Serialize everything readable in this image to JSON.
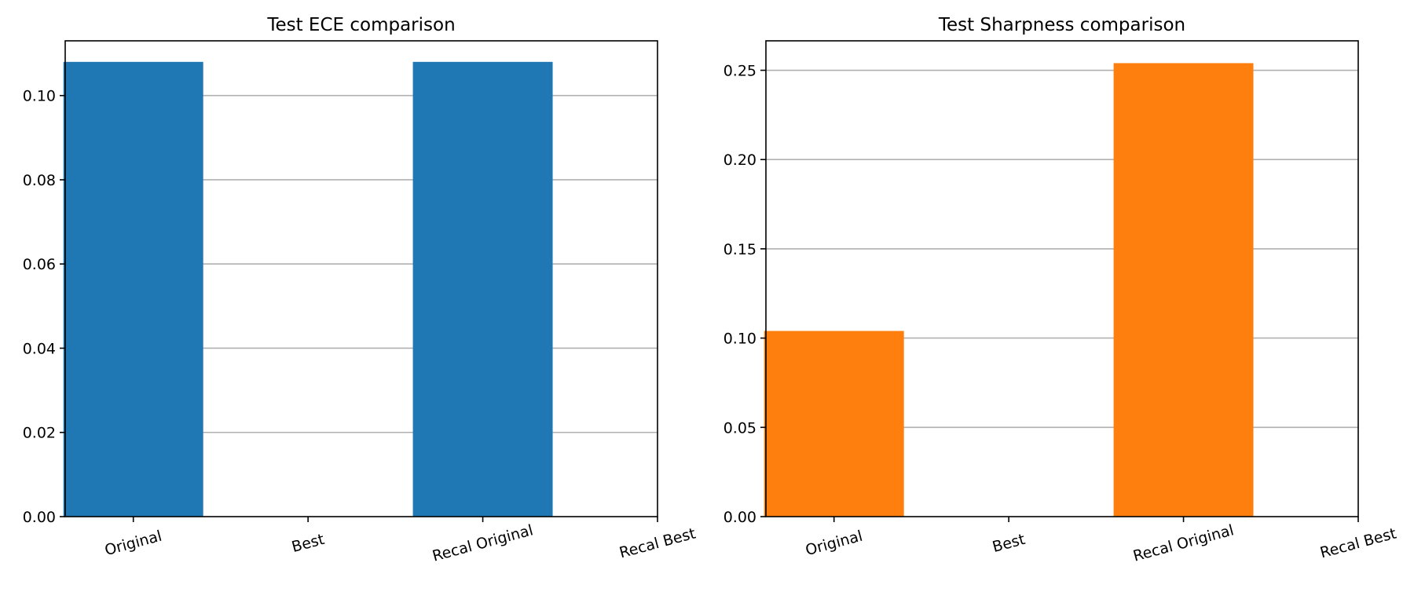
{
  "chart_data": [
    {
      "type": "bar",
      "title": "Test ECE comparison",
      "xlabel": "",
      "ylabel": "",
      "categories": [
        "Original",
        "Best",
        "Recal Original",
        "Recal Best"
      ],
      "values": [
        0.108,
        0.0,
        0.108,
        0.0
      ],
      "ylim": [
        0,
        0.113
      ],
      "yticks": [
        "0.00",
        "0.02",
        "0.04",
        "0.06",
        "0.08",
        "0.10"
      ],
      "ytick_values": [
        0.0,
        0.02,
        0.04,
        0.06,
        0.08,
        0.1
      ],
      "grid": "y",
      "color": "#1f77b4",
      "xtick_rotation": "15"
    },
    {
      "type": "bar",
      "title": "Test Sharpness comparison",
      "xlabel": "",
      "ylabel": "",
      "categories": [
        "Original",
        "Best",
        "Recal Original",
        "Recal Best"
      ],
      "values": [
        0.104,
        0.0,
        0.254,
        0.0
      ],
      "ylim": [
        0,
        0.2665
      ],
      "yticks": [
        "0.00",
        "0.05",
        "0.10",
        "0.15",
        "0.20",
        "0.25"
      ],
      "ytick_values": [
        0.0,
        0.05,
        0.1,
        0.15,
        0.2,
        0.25
      ],
      "grid": "y",
      "color": "#ff7f0e",
      "xtick_rotation": "15"
    }
  ]
}
